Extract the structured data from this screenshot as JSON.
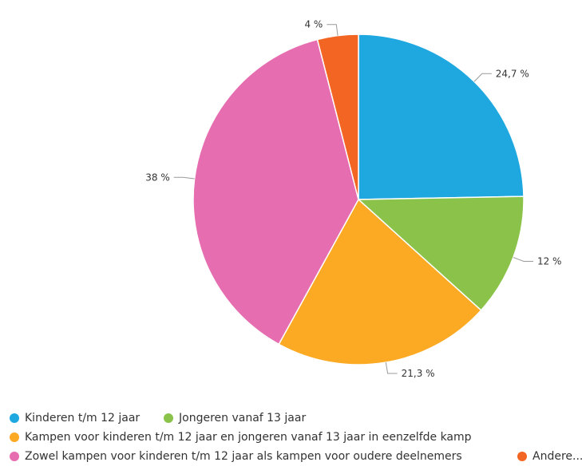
{
  "chart_data": {
    "type": "pie",
    "slices": [
      {
        "name": "Kinderen t/m 12 jaar",
        "value": 24.7,
        "label": "24,7 %",
        "color": "#1fa8e0"
      },
      {
        "name": "Jongeren vanaf 13 jaar",
        "value": 12,
        "label": "12 %",
        "color": "#8bc34a"
      },
      {
        "name": "Kampen voor kinderen t/m 12 jaar en jongeren vanaf 13 jaar in eenzelfde kamp",
        "value": 21.3,
        "label": "21,3 %",
        "color": "#fca923"
      },
      {
        "name": "Zowel kampen voor kinderen t/m 12 jaar als kampen voor oudere deelnemers",
        "value": 38,
        "label": "38 %",
        "color": "#e66daf"
      },
      {
        "name": "Andere...",
        "value": 4,
        "label": "4 %",
        "color": "#f26522"
      }
    ],
    "legend_position": "bottom"
  }
}
